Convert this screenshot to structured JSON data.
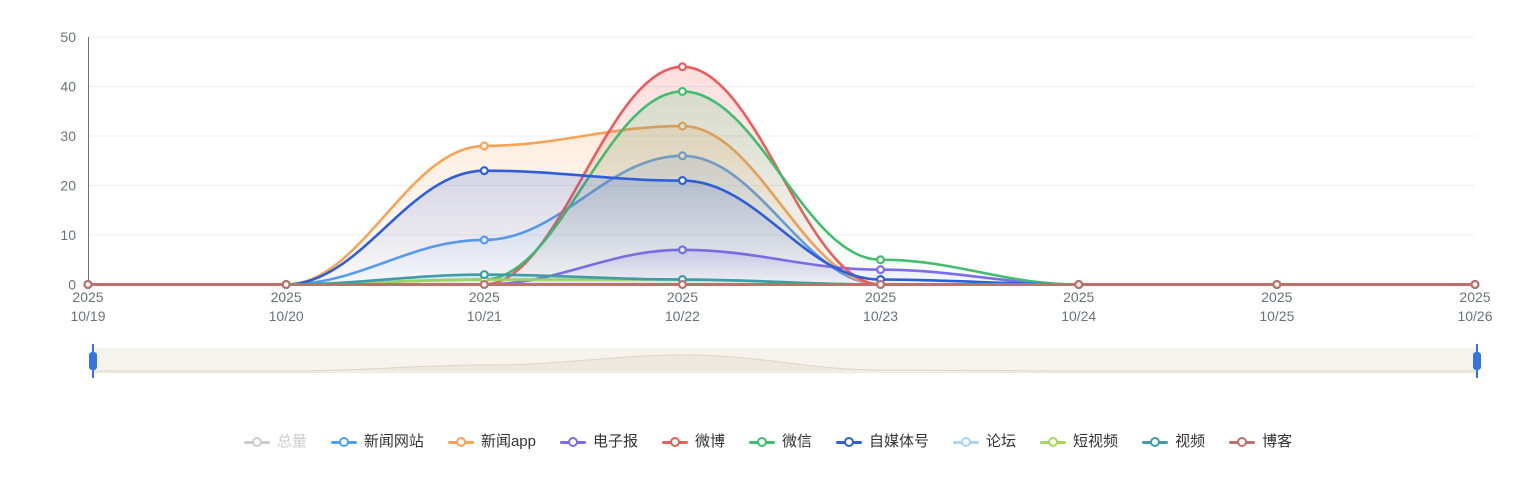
{
  "chart_data": {
    "type": "line",
    "smooth": true,
    "title": "",
    "xlabel": "",
    "ylabel": "",
    "year_label": "2025",
    "categories": [
      "10/19",
      "10/20",
      "10/21",
      "10/22",
      "10/23",
      "10/24",
      "10/25",
      "10/26"
    ],
    "ylim": [
      0,
      50
    ],
    "ytick_step": 10,
    "grid": true,
    "legend_position": "bottom",
    "axis_text_color": "#6e7079",
    "axis_line_color": "#6e7079",
    "grid_line_color": "#ebedf2",
    "series": [
      {
        "name": "总量",
        "color": "#c8c8c8",
        "selected": false,
        "values": []
      },
      {
        "name": "新闻网站",
        "color": "#4f9ef8",
        "selected": true,
        "values": [
          0,
          0,
          9,
          26,
          0,
          0,
          0,
          0
        ]
      },
      {
        "name": "新闻app",
        "color": "#f7a456",
        "selected": true,
        "values": [
          0,
          0,
          28,
          32,
          0,
          0,
          0,
          0
        ]
      },
      {
        "name": "电子报",
        "color": "#7d6af0",
        "selected": true,
        "values": [
          0,
          0,
          0,
          7,
          3,
          0,
          0,
          0
        ]
      },
      {
        "name": "微博",
        "color": "#ef5b5b",
        "selected": true,
        "values": [
          0,
          0,
          0,
          44,
          0,
          0,
          0,
          0
        ]
      },
      {
        "name": "微信",
        "color": "#41bd6d",
        "selected": true,
        "values": [
          0,
          0,
          1,
          39,
          5,
          0,
          0,
          0
        ]
      },
      {
        "name": "自媒体号",
        "color": "#2e5fd8",
        "selected": true,
        "values": [
          0,
          0,
          23,
          21,
          1,
          0,
          0,
          0
        ]
      },
      {
        "name": "论坛",
        "color": "#a9d4f8",
        "selected": true,
        "values": [
          0,
          0,
          0,
          0,
          0,
          0,
          0,
          0
        ]
      },
      {
        "name": "短视频",
        "color": "#a6d75d",
        "selected": true,
        "values": [
          0,
          0,
          1,
          1,
          0,
          0,
          0,
          0
        ]
      },
      {
        "name": "视频",
        "color": "#3f9daa",
        "selected": true,
        "values": [
          0,
          0,
          2,
          1,
          0,
          0,
          0,
          0
        ]
      },
      {
        "name": "博客",
        "color": "#c0706b",
        "selected": true,
        "values": [
          0,
          0,
          0,
          0,
          0,
          0,
          0,
          0
        ]
      }
    ]
  },
  "slider": {
    "track_color": "#f6f2ec",
    "handle_color": "#3674e0",
    "shadow_fill": "#eae3d8",
    "shadow_line": "#ddd4c6"
  }
}
